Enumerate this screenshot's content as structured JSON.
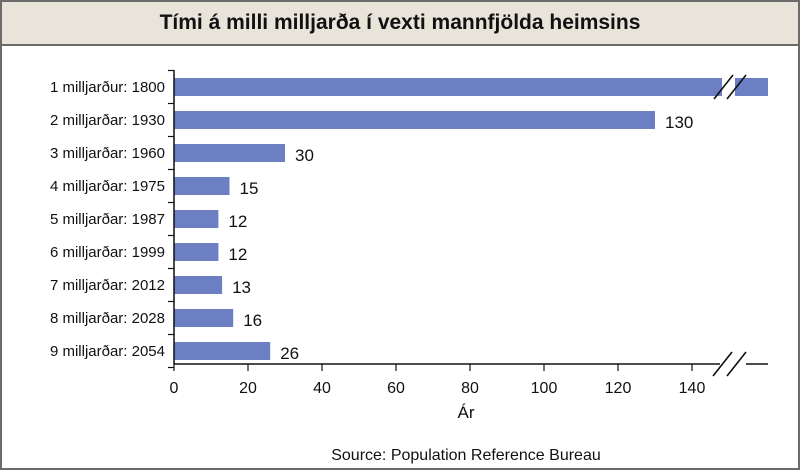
{
  "title": "Tími á milli milljarða í vexti mannfjölda heimsins",
  "source": "Source: Population Reference Bureau",
  "colors": {
    "bar": "#6b7fc2",
    "axis": "#111111",
    "title_bg": "#e9e4da"
  },
  "chart_data": {
    "type": "bar",
    "orientation": "horizontal",
    "categories": [
      "1 milljarður: 1800",
      "2 milljarðar: 1930",
      "3 milljarðar: 1960",
      "4 milljarðar: 1975",
      "5 milljarðar: 1987",
      "6 milljarðar: 1999",
      "7 milljarðar: 2012",
      "8 milljarðar: 2028",
      "9 milljarðar: 2054"
    ],
    "values": [
      null,
      130,
      30,
      15,
      12,
      12,
      13,
      16,
      26
    ],
    "value_labels": [
      "",
      "130",
      "30",
      "15",
      "12",
      "12",
      "13",
      "16",
      "26"
    ],
    "xlabel": "Ár",
    "ylabel": "",
    "xlim": [
      0,
      160
    ],
    "xticks": [
      0,
      20,
      40,
      60,
      80,
      100,
      120,
      140
    ],
    "axis_break": true,
    "first_bar_extends_past_break": true,
    "grid": false,
    "legend": "none"
  }
}
